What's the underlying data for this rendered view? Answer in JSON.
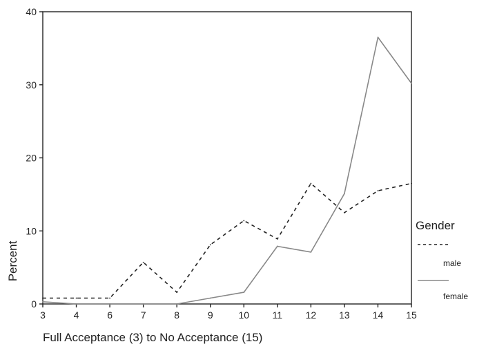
{
  "chart_data": {
    "type": "line",
    "title": "",
    "xlabel": "Full Acceptance (3) to No Acceptance (15)",
    "ylabel": "Percent",
    "x": [
      3,
      4,
      6,
      7,
      8,
      9,
      10,
      11,
      12,
      13,
      14,
      15
    ],
    "ylim": [
      0,
      40
    ],
    "yticks": [
      0,
      10,
      20,
      30,
      40
    ],
    "grid": false,
    "legend": {
      "title": "Gender",
      "position": "right"
    },
    "series": [
      {
        "name": "male",
        "style": "dashed",
        "color": "#222222",
        "values": [
          0.8,
          0.8,
          0.8,
          5.7,
          1.6,
          8.1,
          11.4,
          8.9,
          16.5,
          12.5,
          15.5,
          16.5
        ]
      },
      {
        "name": "female",
        "style": "solid",
        "color": "#888888",
        "values": [
          0.3,
          0,
          0,
          0,
          0,
          0.8,
          1.6,
          7.9,
          7.1,
          15.1,
          36.5,
          30.2
        ]
      }
    ]
  }
}
